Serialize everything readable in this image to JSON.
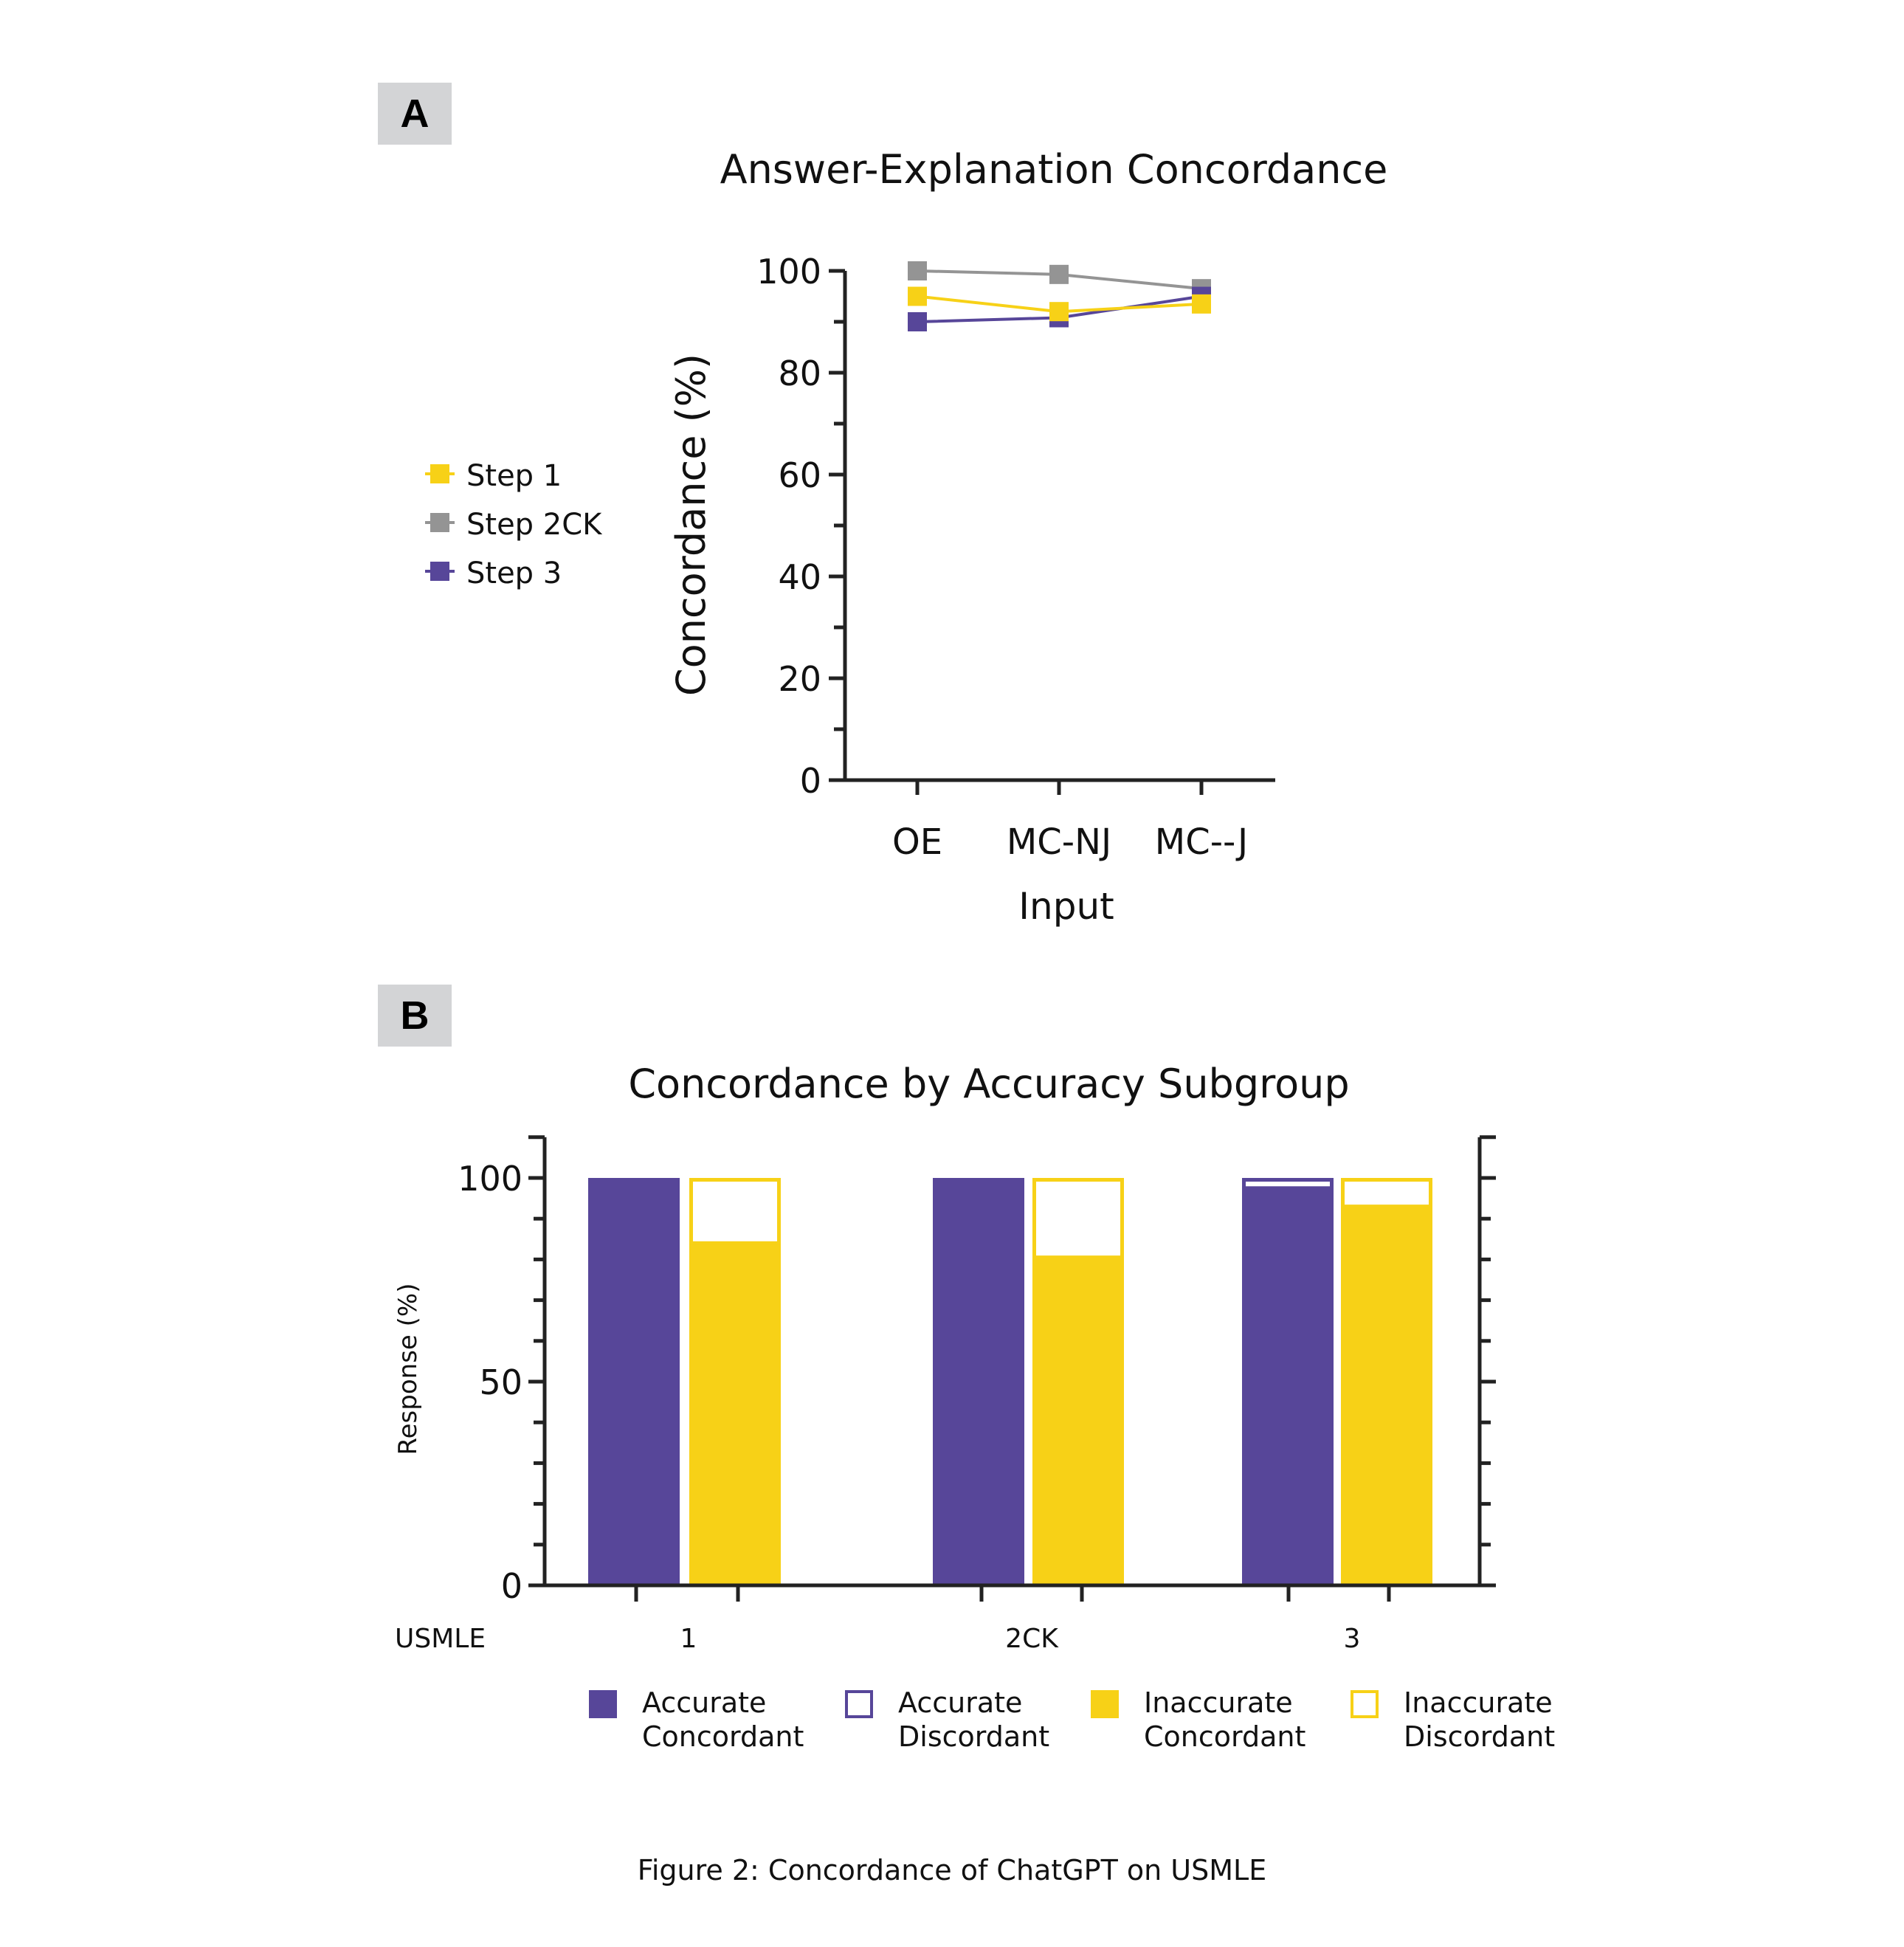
{
  "panels": {
    "a_label": "A",
    "b_label": "B"
  },
  "caption": "Figure 2: Concordance of ChatGPT on USMLE",
  "colors": {
    "step1": "#f7d117",
    "step2ck": "#949494",
    "step3": "#574699",
    "accurate": "#574699",
    "inaccurate": "#f7d117",
    "axis": "#222222"
  },
  "chart_data": [
    {
      "type": "line",
      "title": "Answer-Explanation Concordance",
      "xlabel": "Input",
      "ylabel": "Concordance (%)",
      "categories": [
        "OE",
        "MC-NJ",
        "MC--J"
      ],
      "ylim": [
        0,
        100
      ],
      "yticks": [
        0,
        20,
        40,
        60,
        80,
        100
      ],
      "yticks_labels": [
        "0",
        "20",
        "40",
        "60",
        "80",
        "100"
      ],
      "minor_tick_step": 10,
      "grid": false,
      "legend_position": "left",
      "series": [
        {
          "name": "Step 1",
          "color_key": "step1",
          "values": [
            95,
            92,
            93.5
          ]
        },
        {
          "name": "Step 2CK",
          "color_key": "step2ck",
          "values": [
            100,
            99.3,
            96.5
          ]
        },
        {
          "name": "Step 3",
          "color_key": "step3",
          "values": [
            90,
            90.8,
            95
          ]
        }
      ]
    },
    {
      "type": "bar",
      "stacked": true,
      "title": "Concordance by Accuracy Subgroup",
      "xlabel": "USMLE",
      "ylabel": "Response (%)",
      "categories": [
        "1",
        "2CK",
        "3"
      ],
      "ylim": [
        0,
        110
      ],
      "yticks": [
        0,
        50,
        100
      ],
      "yticks_labels": [
        "0",
        "50",
        "100"
      ],
      "minor_tick_step": 10,
      "grid": false,
      "legend_position": "bottom",
      "groups": [
        {
          "name": "Accurate",
          "color_key": "accurate",
          "concordant": [
            100,
            100,
            97.5
          ],
          "discordant": [
            0,
            0,
            2.5
          ]
        },
        {
          "name": "Inaccurate",
          "color_key": "inaccurate",
          "concordant": [
            84,
            80.5,
            93
          ],
          "discordant": [
            16,
            19.5,
            7
          ]
        }
      ],
      "legend": [
        {
          "line1": "Accurate",
          "line2": "Concordant",
          "color_key": "accurate",
          "filled": true
        },
        {
          "line1": "Accurate",
          "line2": "Discordant",
          "color_key": "accurate",
          "filled": false
        },
        {
          "line1": "Inaccurate",
          "line2": "Concordant",
          "color_key": "inaccurate",
          "filled": true
        },
        {
          "line1": "Inaccurate",
          "line2": "Discordant",
          "color_key": "inaccurate",
          "filled": false
        }
      ]
    }
  ]
}
